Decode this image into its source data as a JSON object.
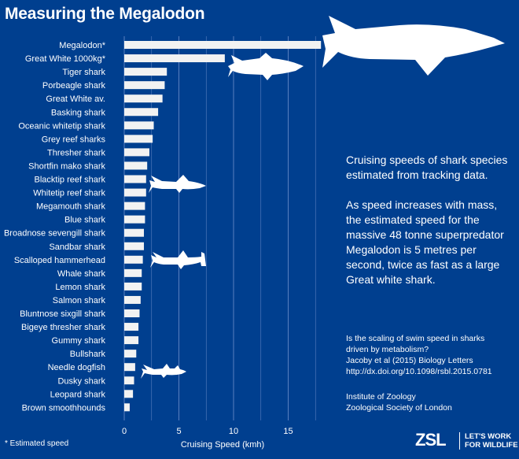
{
  "title": "Measuring the Megalodon",
  "description": {
    "p1": "Cruising speeds of shark species estimated from tracking data.",
    "p2": "As speed increases with mass, the estimated speed for the massive 48 tonne superpredator Megalodon is 5 metres per second, twice as fast as a large Great white shark."
  },
  "reference": {
    "lines": [
      "Is the scaling of swim speed in sharks",
      "driven by metabolism?",
      "Jacoby et al (2015) Biology Letters",
      "http://dx.doi.org/10.1098/rsbl.2015.0781"
    ]
  },
  "institution": {
    "line1": "Institute of Zoology",
    "line2": "Zoological Society of London"
  },
  "footnote": "* Estimated speed",
  "logo": {
    "mark": "ZSL",
    "tagline1": "LET'S WORK",
    "tagline2": "FOR WILDLIFE"
  },
  "colors": {
    "background": "#003f8f",
    "bar": "#f2f2f2",
    "grid": "#5a7fbf"
  },
  "icons": [
    "megalodon-silhouette",
    "great-white-silhouette",
    "blacktip-silhouette",
    "hammerhead-silhouette",
    "dogfish-silhouette"
  ],
  "chart_data": {
    "type": "bar",
    "orientation": "horizontal",
    "categories": [
      "Megalodon*",
      "Great White 1000kg*",
      "Tiger shark",
      "Porbeagle shark",
      "Great White av.",
      "Basking shark",
      "Oceanic whitetip shark",
      "Grey reef sharks",
      "Thresher shark",
      "Shortfin mako shark",
      "Blacktip reef shark",
      "Whitetip reef shark",
      "Megamouth shark",
      "Blue shark",
      "Broadnose sevengill shark",
      "Sandbar shark",
      "Scalloped hammerhead",
      "Whale shark",
      "Lemon shark",
      "Salmon shark",
      "Bluntnose sixgill shark",
      "Bigeye thresher shark",
      "Gummy shark",
      "Bullshark",
      "Needle dogfish",
      "Dusky shark",
      "Leopard shark",
      "Brown smoothhounds"
    ],
    "values": [
      18.0,
      9.2,
      3.9,
      3.7,
      3.5,
      3.1,
      2.7,
      2.6,
      2.3,
      2.1,
      2.0,
      2.0,
      1.9,
      1.9,
      1.8,
      1.8,
      1.7,
      1.6,
      1.6,
      1.5,
      1.4,
      1.3,
      1.3,
      1.1,
      1.0,
      0.9,
      0.8,
      0.5
    ],
    "title": "",
    "xlabel": "Cruising Speed (kmh)",
    "ylabel": "",
    "xlim": [
      0,
      18
    ],
    "xticks": [
      0,
      5,
      10,
      15
    ],
    "grid": true
  }
}
